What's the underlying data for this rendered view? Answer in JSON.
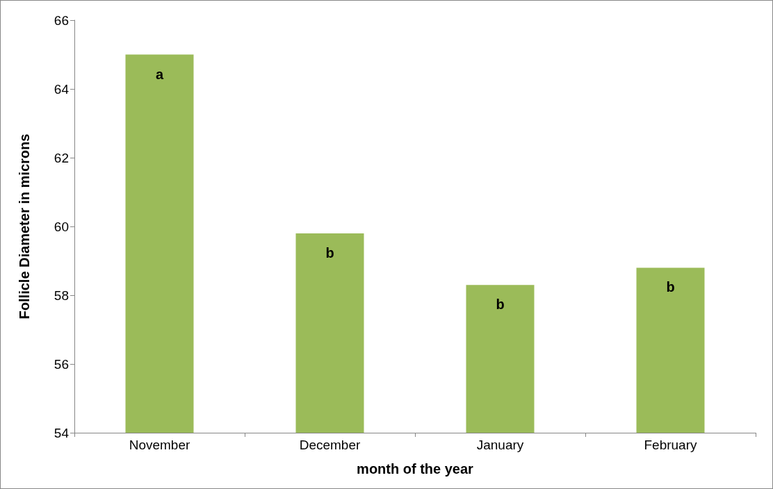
{
  "chart_data": {
    "type": "bar",
    "xlabel": "month of the year",
    "ylabel": "Follicle Diameter in microns",
    "categories": [
      "November",
      "December",
      "January",
      "February"
    ],
    "values": [
      65.0,
      59.8,
      58.3,
      58.8
    ],
    "color": "#9bbb59",
    "ylim": [
      54,
      66
    ],
    "yticks": [
      54,
      56,
      58,
      60,
      62,
      64,
      66
    ],
    "grid": false,
    "annotations": [
      "a",
      "b",
      "b",
      "b"
    ]
  }
}
